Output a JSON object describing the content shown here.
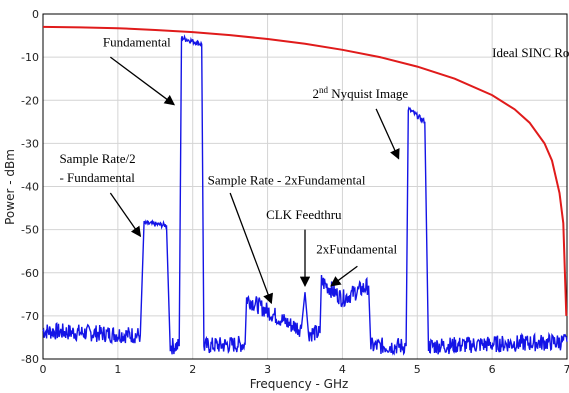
{
  "chart_data": {
    "type": "line",
    "xlabel": "Frequency - GHz",
    "ylabel": "Power - dBm",
    "xlim": [
      0,
      7
    ],
    "ylim": [
      -80,
      0
    ],
    "xticks": [
      "0",
      "1",
      "2",
      "3",
      "4",
      "5",
      "6",
      "7"
    ],
    "yticks": [
      "0",
      "-10",
      "-20",
      "-30",
      "-40",
      "-50",
      "-60",
      "-70",
      "-80"
    ],
    "grid": true,
    "series": [
      {
        "name": "",
        "color": "#e01b1b",
        "x": [
          0,
          0.5,
          1.0,
          1.5,
          2.0,
          2.5,
          3.0,
          3.5,
          4.0,
          4.5,
          5.0,
          5.5,
          6.0,
          6.3,
          6.5,
          6.7,
          6.8,
          6.9,
          6.95,
          6.99
        ],
        "y": [
          -3.0,
          -3.1,
          -3.3,
          -3.7,
          -4.2,
          -4.9,
          -5.8,
          -6.9,
          -8.3,
          -10.0,
          -12.2,
          -15.0,
          -18.8,
          -22.1,
          -25.2,
          -30.0,
          -34.0,
          -41.5,
          -48.5,
          -70.0
        ]
      },
      {
        "name": "",
        "color": "#1414e6",
        "x": [
          0,
          1.3,
          1.35,
          1.65,
          1.7,
          1.82,
          1.85,
          2.12,
          2.15,
          2.7,
          2.72,
          3.3,
          3.45,
          3.5,
          3.55,
          3.7,
          3.72,
          4.0,
          4.35,
          4.38,
          4.85,
          4.88,
          5.1,
          5.15,
          7.0
        ],
        "y": [
          -73.5,
          -74.5,
          -48.5,
          -49.0,
          -77.0,
          -77.0,
          -5.5,
          -7.0,
          -77.0,
          -76.5,
          -66.0,
          -72.0,
          -73.0,
          -64.5,
          -74.0,
          -74.0,
          -62.0,
          -66.0,
          -63.0,
          -77.0,
          -77.0,
          -22.0,
          -25.0,
          -77.0,
          -76.0
        ]
      }
    ],
    "annotations": [
      {
        "text": "Ideal SINC Roll-Off",
        "x": 6.0,
        "y": -10.0
      },
      {
        "text": "Fundamental",
        "x": 0.8,
        "y": -7.5
      },
      {
        "text": "2nd Nyquist Image",
        "x": 3.6,
        "y": -19.5
      },
      {
        "text": "Sample Rate/2",
        "x": 0.22,
        "y": -34.5
      },
      {
        "text": "- Fundamental",
        "x": 0.22,
        "y": -39.0
      },
      {
        "text": "Sample Rate - 2xFundamental",
        "x": 2.2,
        "y": -39.5
      },
      {
        "text": "CLK Feedthru",
        "x": 2.98,
        "y": -47.5
      },
      {
        "text": "2xFundamental",
        "x": 3.65,
        "y": -55.5
      }
    ],
    "arrows": [
      {
        "from": [
          0.9,
          -10.0
        ],
        "to": [
          1.75,
          -21.0
        ]
      },
      {
        "from": [
          4.45,
          -22.0
        ],
        "to": [
          4.75,
          -33.5
        ]
      },
      {
        "from": [
          0.9,
          -41.5
        ],
        "to": [
          1.3,
          -51.5
        ]
      },
      {
        "from": [
          2.5,
          -41.5
        ],
        "to": [
          3.05,
          -67.0
        ]
      },
      {
        "from": [
          3.5,
          -50.0
        ],
        "to": [
          3.5,
          -63.0
        ]
      },
      {
        "from": [
          4.2,
          -58.5
        ],
        "to": [
          3.85,
          -63.0
        ]
      }
    ]
  }
}
